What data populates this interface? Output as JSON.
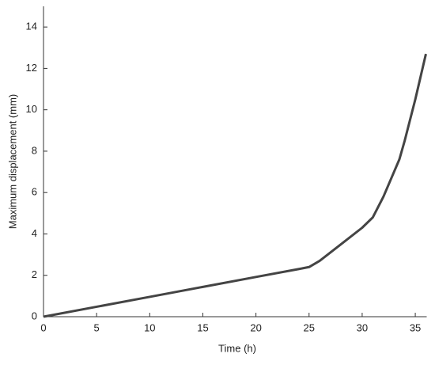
{
  "chart_data": {
    "type": "line",
    "x_label": "Time (h)",
    "y_label": "Maximum displacement (mm)",
    "xlim": [
      0,
      36
    ],
    "ylim": [
      0,
      15
    ],
    "xticks": [
      0,
      5,
      10,
      15,
      20,
      25,
      30,
      35
    ],
    "yticks": [
      0,
      2,
      4,
      6,
      8,
      10,
      12,
      14
    ],
    "series": [
      {
        "name": "Maximum displacement",
        "color": "#444444",
        "x": [
          0,
          5,
          10,
          15,
          20,
          24,
          25,
          26,
          28,
          30,
          31,
          32,
          33,
          33.5,
          34,
          35,
          36
        ],
        "values": [
          0,
          0.48,
          0.96,
          1.44,
          1.92,
          2.3,
          2.4,
          2.7,
          3.5,
          4.3,
          4.8,
          5.8,
          7.0,
          7.6,
          8.5,
          10.5,
          12.7
        ]
      }
    ]
  }
}
